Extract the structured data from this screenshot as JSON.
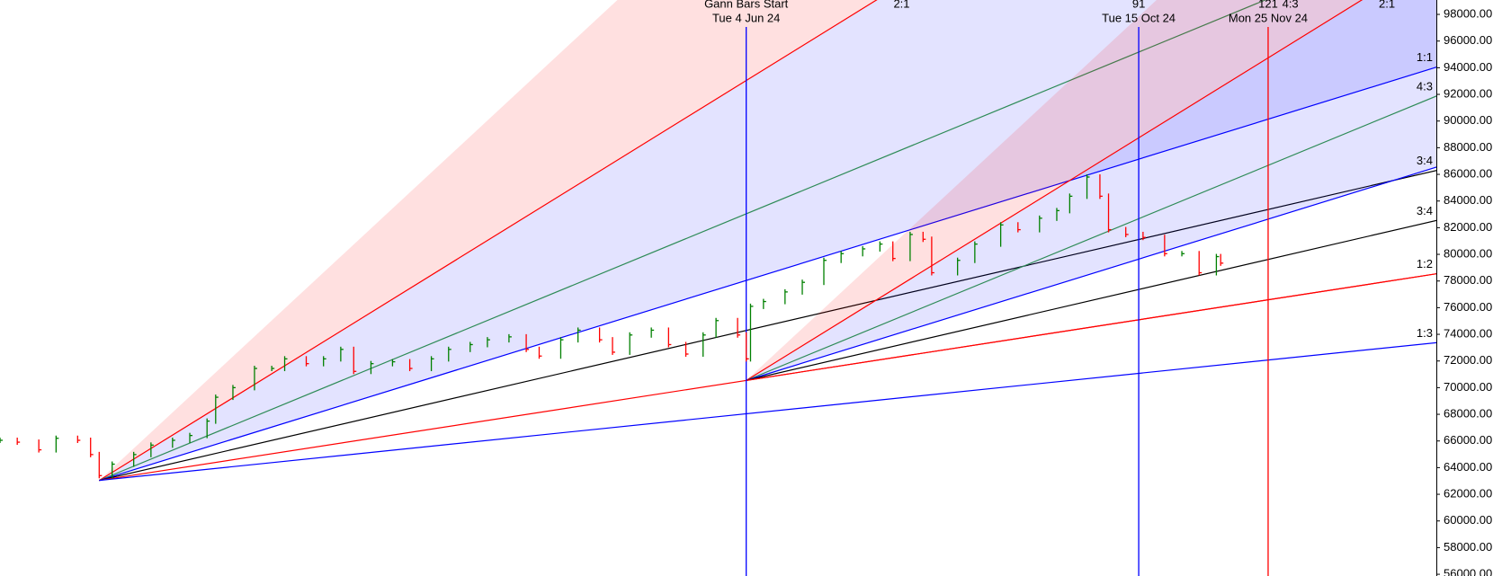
{
  "chart_data": {
    "type": "gann",
    "x": [
      -173,
      -169,
      -164,
      -160,
      -155,
      -152,
      -150,
      -147,
      -142,
      -138,
      -133,
      -129,
      -125,
      -123,
      -119,
      -114,
      -110,
      -107,
      -102,
      -98,
      -94,
      -91,
      -87,
      -82,
      -78,
      -73,
      -69,
      -64,
      -60,
      -55,
      -51,
      -48,
      -43,
      -39,
      -34,
      -31,
      -27,
      -22,
      -18,
      -14,
      -10,
      -7,
      -2,
      0,
      1,
      4,
      9,
      13,
      18,
      22,
      27,
      31,
      34,
      38,
      41,
      43,
      49,
      53,
      59,
      63,
      68,
      72,
      75,
      79,
      82,
      84,
      88,
      92,
      97,
      101,
      105,
      109,
      110
    ],
    "values": [
      66050,
      65910,
      65335,
      66200,
      66050,
      64980,
      63400,
      64260,
      64980,
      65690,
      66050,
      66410,
      67490,
      69280,
      70000,
      71440,
      71440,
      72160,
      71800,
      72160,
      72870,
      71220,
      71800,
      71940,
      71440,
      72160,
      72870,
      73230,
      73590,
      73810,
      72870,
      72370,
      73590,
      74310,
      73590,
      72660,
      73950,
      74310,
      73230,
      72520,
      73950,
      75030,
      73950,
      72160,
      76100,
      76460,
      77180,
      77900,
      79550,
      80050,
      80410,
      80770,
      79690,
      81490,
      81130,
      78620,
      79550,
      80770,
      82210,
      81850,
      82710,
      83280,
      84360,
      85800,
      84360,
      81850,
      81490,
      81270,
      80050,
      80050,
      78620,
      79830,
      79340
    ],
    "up_color": "#008000",
    "down_color": "#ff0000",
    "xlim": [
      -173,
      160
    ],
    "ylim": [
      55870,
      99080
    ],
    "yticks": [
      {
        "value": 98000,
        "label": "98000.00"
      },
      {
        "value": 96000,
        "label": "96000.00"
      },
      {
        "value": 94000,
        "label": "94000.00"
      },
      {
        "value": 92000,
        "label": "92000.00"
      },
      {
        "value": 90000,
        "label": "90000.00"
      },
      {
        "value": 88000,
        "label": "88000.00"
      },
      {
        "value": 86000,
        "label": "86000.00"
      },
      {
        "value": 84000,
        "label": "84000.00"
      },
      {
        "value": 82000,
        "label": "82000.00"
      },
      {
        "value": 80000,
        "label": "80000.00"
      },
      {
        "value": 78000,
        "label": "78000.00"
      },
      {
        "value": 76000,
        "label": "76000.00"
      },
      {
        "value": 74000,
        "label": "74000.00"
      },
      {
        "value": 72000,
        "label": "72000.00"
      },
      {
        "value": 70000,
        "label": "70000.00"
      },
      {
        "value": 68000,
        "label": "68000.00"
      },
      {
        "value": 66000,
        "label": "66000.00"
      },
      {
        "value": 64000,
        "label": "64000.00"
      },
      {
        "value": 62000,
        "label": "62000.00"
      },
      {
        "value": 60000,
        "label": "60000.00"
      },
      {
        "value": 58000,
        "label": "58000.00"
      },
      {
        "value": 56000,
        "label": "56000.00"
      }
    ],
    "fans": [
      {
        "origin_x": -150,
        "origin_y": 63040,
        "shades": [
          {
            "from": 300,
            "to": 200,
            "color": "rgba(255,0,0,0.12)"
          },
          {
            "from": 200,
            "to": 100,
            "color": "rgba(0,0,255,0.11)"
          }
        ],
        "lines": [
          {
            "slope": 200,
            "color": "#ff0000",
            "label": "2:1"
          },
          {
            "slope": 133.33,
            "color": "#2e8b57",
            "label": "4:3"
          },
          {
            "slope": 100,
            "color": "#0000ff",
            "label": "1:1"
          },
          {
            "slope": 75,
            "color": "#000000",
            "label": "3:4"
          },
          {
            "slope": 50,
            "color": "#ff0000",
            "label": "1:2"
          },
          {
            "slope": 33.33,
            "color": "#0000ff",
            "label": "1:3"
          }
        ]
      },
      {
        "origin_x": 0,
        "origin_y": 70540,
        "shades": [
          {
            "from": 300,
            "to": 200,
            "color": "rgba(255,0,0,0.12)"
          },
          {
            "from": 200,
            "to": 100,
            "color": "rgba(0,0,255,0.11)"
          }
        ],
        "lines": [
          {
            "slope": 200,
            "color": "#ff0000",
            "label": "2:1"
          },
          {
            "slope": 133.33,
            "color": "#2e8b57",
            "label": "4:3"
          },
          {
            "slope": 100,
            "color": "#0000ff"
          },
          {
            "slope": 75,
            "color": "#000000",
            "label": "3:4"
          },
          {
            "slope": 50,
            "color": "#ff0000"
          }
        ]
      }
    ],
    "markers": [
      {
        "x": 0,
        "label": "Gann Bars Start",
        "date": "Tue 4 Jun 24",
        "color": "#0000ff"
      },
      {
        "x": 91,
        "label": 91,
        "date": "Tue 15 Oct 24",
        "color": "#0000ff"
      },
      {
        "x": 121,
        "label": 121,
        "date": "Mon 25 Nov 24",
        "color": "#ff0000"
      }
    ]
  }
}
